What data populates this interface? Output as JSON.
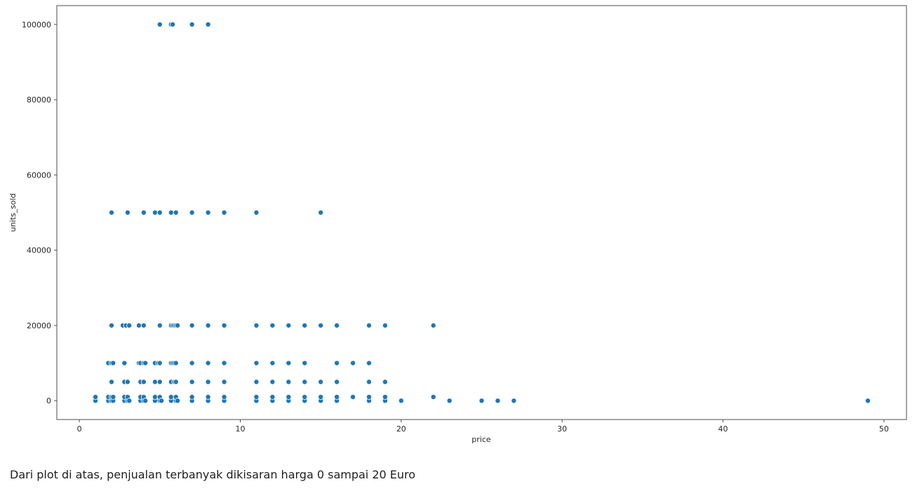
{
  "chart_data": {
    "type": "scatter",
    "title": "",
    "xlabel": "price",
    "ylabel": "units_sold",
    "xlim": [
      -1.4,
      51.4
    ],
    "ylim": [
      -5000,
      105000
    ],
    "xticks": [
      0,
      10,
      20,
      30,
      40,
      50
    ],
    "yticks": [
      0,
      20000,
      40000,
      60000,
      80000,
      100000
    ],
    "grid": false,
    "legend": "none",
    "marker_color": "#1f77b4",
    "points": [
      [
        1,
        0
      ],
      [
        1,
        1000
      ],
      [
        1.8,
        0
      ],
      [
        1.8,
        1000
      ],
      [
        2,
        0
      ],
      [
        2,
        1000
      ],
      [
        2.1,
        0
      ],
      [
        2.1,
        1000
      ],
      [
        2.8,
        0
      ],
      [
        2.8,
        1000
      ],
      [
        3,
        0
      ],
      [
        3,
        1000
      ],
      [
        3.1,
        0
      ],
      [
        3.8,
        0
      ],
      [
        3.8,
        1000
      ],
      [
        4,
        0
      ],
      [
        4,
        1000
      ],
      [
        4.1,
        0
      ],
      [
        4.7,
        0
      ],
      [
        4.7,
        1000
      ],
      [
        5,
        0
      ],
      [
        5,
        1000
      ],
      [
        5.1,
        0
      ],
      [
        5.7,
        0
      ],
      [
        5.7,
        1000
      ],
      [
        6,
        0
      ],
      [
        6,
        1000
      ],
      [
        6.1,
        0
      ],
      [
        7,
        0
      ],
      [
        7,
        1000
      ],
      [
        8,
        0
      ],
      [
        8,
        1000
      ],
      [
        9,
        0
      ],
      [
        9,
        1000
      ],
      [
        11,
        0
      ],
      [
        11,
        1000
      ],
      [
        12,
        0
      ],
      [
        12,
        1000
      ],
      [
        13,
        0
      ],
      [
        13,
        1000
      ],
      [
        14,
        0
      ],
      [
        14,
        1000
      ],
      [
        15,
        0
      ],
      [
        15,
        1000
      ],
      [
        16,
        0
      ],
      [
        16,
        1000
      ],
      [
        17,
        1000
      ],
      [
        18,
        0
      ],
      [
        18,
        1000
      ],
      [
        19,
        0
      ],
      [
        19,
        1000
      ],
      [
        20,
        0
      ],
      [
        22,
        1000
      ],
      [
        23,
        0
      ],
      [
        25,
        0
      ],
      [
        26,
        0
      ],
      [
        27,
        0
      ],
      [
        49,
        0
      ],
      [
        2,
        5000
      ],
      [
        2.8,
        5000
      ],
      [
        3,
        5000
      ],
      [
        3.8,
        5000
      ],
      [
        4,
        5000
      ],
      [
        4.7,
        5000
      ],
      [
        5,
        5000
      ],
      [
        5.7,
        5000
      ],
      [
        5.9,
        5000
      ],
      [
        6,
        5000
      ],
      [
        7,
        5000
      ],
      [
        8,
        5000
      ],
      [
        9,
        5000
      ],
      [
        11,
        5000
      ],
      [
        12,
        5000
      ],
      [
        13,
        5000
      ],
      [
        14,
        5000
      ],
      [
        15,
        5000
      ],
      [
        16,
        5000
      ],
      [
        18,
        5000
      ],
      [
        19,
        5000
      ],
      [
        1.8,
        10000
      ],
      [
        2,
        10000
      ],
      [
        2.1,
        10000
      ],
      [
        2.8,
        10000
      ],
      [
        3.7,
        10000
      ],
      [
        3.8,
        10000
      ],
      [
        4,
        10000
      ],
      [
        4.1,
        10000
      ],
      [
        4.7,
        10000
      ],
      [
        4.9,
        10000
      ],
      [
        5,
        10000
      ],
      [
        5.7,
        10000
      ],
      [
        5.8,
        10000
      ],
      [
        5.9,
        10000
      ],
      [
        6,
        10000
      ],
      [
        7,
        10000
      ],
      [
        8,
        10000
      ],
      [
        9,
        10000
      ],
      [
        11,
        10000
      ],
      [
        12,
        10000
      ],
      [
        13,
        10000
      ],
      [
        14,
        10000
      ],
      [
        16,
        10000
      ],
      [
        17,
        10000
      ],
      [
        18,
        10000
      ],
      [
        2,
        20000
      ],
      [
        2.7,
        20000
      ],
      [
        2.9,
        20000
      ],
      [
        3.1,
        20000
      ],
      [
        3.7,
        20000
      ],
      [
        4,
        20000
      ],
      [
        5,
        20000
      ],
      [
        5.7,
        20000
      ],
      [
        5.8,
        20000
      ],
      [
        5.9,
        20000
      ],
      [
        6,
        20000
      ],
      [
        6.1,
        20000
      ],
      [
        7,
        20000
      ],
      [
        8,
        20000
      ],
      [
        9,
        20000
      ],
      [
        11,
        20000
      ],
      [
        12,
        20000
      ],
      [
        13,
        20000
      ],
      [
        14,
        20000
      ],
      [
        15,
        20000
      ],
      [
        16,
        20000
      ],
      [
        18,
        20000
      ],
      [
        19,
        20000
      ],
      [
        22,
        20000
      ],
      [
        2,
        50000
      ],
      [
        3,
        50000
      ],
      [
        4,
        50000
      ],
      [
        4.7,
        50000
      ],
      [
        5,
        50000
      ],
      [
        5.7,
        50000
      ],
      [
        6,
        50000
      ],
      [
        7,
        50000
      ],
      [
        8,
        50000
      ],
      [
        9,
        50000
      ],
      [
        11,
        50000
      ],
      [
        15,
        50000
      ],
      [
        5,
        100000
      ],
      [
        5.7,
        100000
      ],
      [
        5.8,
        100000
      ],
      [
        7,
        100000
      ],
      [
        8,
        100000
      ]
    ]
  },
  "caption": "Dari plot di atas, penjualan terbanyak dikisaran harga 0 sampai 20 Euro"
}
